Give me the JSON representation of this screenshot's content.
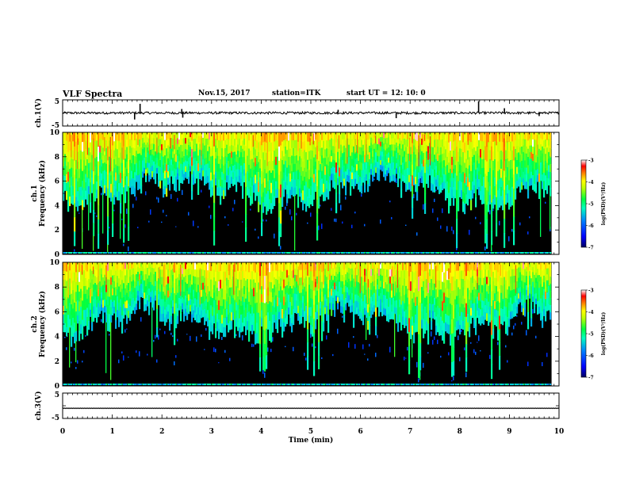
{
  "header": {
    "title": "VLF Spectra",
    "date": "Nov.15, 2017",
    "station": "station=ITK",
    "start": "start  UT  =   12: 10: 0"
  },
  "colors": {
    "background": "#000000",
    "colormap": [
      "#000060",
      "#0000ff",
      "#0080ff",
      "#00ffc0",
      "#00ff40",
      "#c0ff00",
      "#ffff00",
      "#ff8000",
      "#ff0000",
      "#ffffff"
    ]
  },
  "chart_data": [
    {
      "type": "line",
      "name": "waveform-ch1",
      "ylabel": "ch.1(V)",
      "ylim": [
        -5,
        5
      ],
      "yticks": [
        "5",
        "-5"
      ],
      "xlim": [
        0,
        10
      ],
      "baseline": 0,
      "spikes": [
        {
          "x": 1.56,
          "y": 3.5
        },
        {
          "x": 2.4,
          "y": 1.5
        },
        {
          "x": 2.42,
          "y": -1.8
        },
        {
          "x": 1.45,
          "y": -2.5
        },
        {
          "x": 5.55,
          "y": 1.2
        },
        {
          "x": 6.72,
          "y": -2.0
        },
        {
          "x": 8.38,
          "y": 4.5
        },
        {
          "x": 8.9,
          "y": 1.8
        },
        {
          "x": 9.6,
          "y": -1.2
        }
      ]
    },
    {
      "type": "heatmap",
      "name": "spectrogram-ch1",
      "ylabel": "ch.1\nFrequency (kHz)",
      "ylim": [
        0,
        10
      ],
      "yticks": [
        "0",
        "2",
        "4",
        "6",
        "8",
        "10"
      ],
      "xlim": [
        0,
        10
      ],
      "data_end_x": 9.85,
      "colorbar": {
        "label": "log(PSD)(V²/Hz)",
        "range": [
          -7,
          -3
        ],
        "ticks": [
          "-3",
          "-4",
          "-5",
          "-6",
          "-7"
        ]
      }
    },
    {
      "type": "heatmap",
      "name": "spectrogram-ch2",
      "ylabel": "ch.2\nFrequency (kHz)",
      "ylim": [
        0,
        10
      ],
      "yticks": [
        "0",
        "2",
        "4",
        "6",
        "8",
        "10"
      ],
      "xlim": [
        0,
        10
      ],
      "data_end_x": 9.85,
      "colorbar": {
        "label": "log(PSD)(V²/Hz)",
        "range": [
          -7,
          -3
        ],
        "ticks": [
          "-3",
          "-4",
          "-5",
          "-6",
          "-7"
        ]
      }
    },
    {
      "type": "line",
      "name": "waveform-ch3",
      "ylabel": "ch.3(V)",
      "ylim": [
        -5,
        5
      ],
      "yticks": [
        "5",
        "-5"
      ],
      "xlim": [
        0,
        10
      ],
      "baseline": -1
    }
  ],
  "xaxis": {
    "label": "Time (min)",
    "ticks": [
      "0",
      "1",
      "2",
      "3",
      "4",
      "5",
      "6",
      "7",
      "8",
      "9",
      "10"
    ]
  }
}
